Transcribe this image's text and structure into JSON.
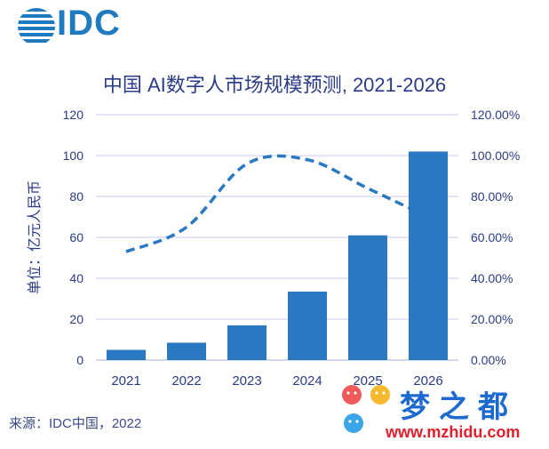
{
  "logo": {
    "text": "IDC"
  },
  "source": "来源：IDC中国，2022",
  "watermark": {
    "title": "梦之都",
    "url": "www.mzhidu.com"
  },
  "colors": {
    "bar": "#2a78c2",
    "line": "#2a78c2",
    "grid": "#c9cbe8",
    "axis_text": "#2a3b87"
  },
  "chart_data": {
    "type": "bar",
    "title": "中国 AI数字人市场规模预测, 2021-2026",
    "ylabel": "单位：亿元人民币",
    "xlabel": "",
    "categories": [
      "2021",
      "2022",
      "2023",
      "2024",
      "2025",
      "2026"
    ],
    "series": [
      {
        "type": "bar",
        "axis": "left",
        "values": [
          5,
          8.5,
          17,
          33.5,
          61,
          102
        ]
      },
      {
        "type": "line",
        "axis": "right",
        "style": "dashed",
        "values": [
          53,
          65,
          96,
          98,
          84,
          70
        ]
      }
    ],
    "ylim": [
      0,
      120
    ],
    "y_ticks": [
      "0",
      "20",
      "40",
      "60",
      "80",
      "100",
      "120"
    ],
    "y2lim": [
      0,
      120
    ],
    "y2_ticks": [
      "0.00%",
      "20.00%",
      "40.00%",
      "60.00%",
      "80.00%",
      "100.00%",
      "120.00%"
    ],
    "grid": true,
    "legend": "none"
  }
}
